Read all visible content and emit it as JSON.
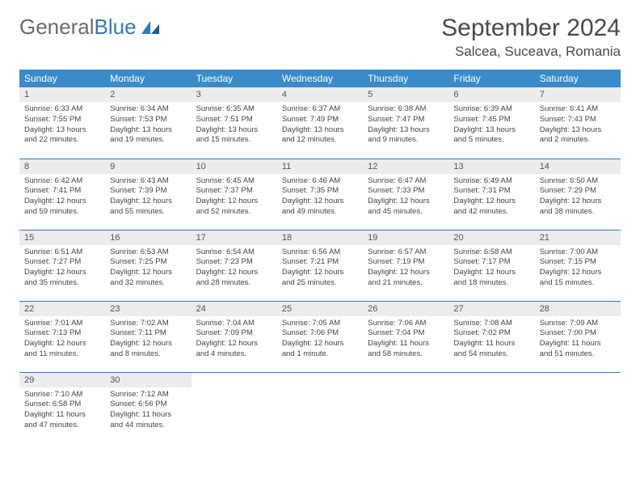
{
  "logo": {
    "text1": "General",
    "text2": "Blue"
  },
  "title": "September 2024",
  "location": "Salcea, Suceava, Romania",
  "colors": {
    "header_bg": "#3a8bc9",
    "header_text": "#ffffff",
    "daynum_bg": "#ececec",
    "border": "#2f7bbf",
    "logo_gray": "#6b6b6b",
    "logo_blue": "#2f7bbf"
  },
  "weekdays": [
    "Sunday",
    "Monday",
    "Tuesday",
    "Wednesday",
    "Thursday",
    "Friday",
    "Saturday"
  ],
  "days": [
    {
      "n": 1,
      "sunrise": "6:33 AM",
      "sunset": "7:55 PM",
      "daylight": "13 hours and 22 minutes."
    },
    {
      "n": 2,
      "sunrise": "6:34 AM",
      "sunset": "7:53 PM",
      "daylight": "13 hours and 19 minutes."
    },
    {
      "n": 3,
      "sunrise": "6:35 AM",
      "sunset": "7:51 PM",
      "daylight": "13 hours and 15 minutes."
    },
    {
      "n": 4,
      "sunrise": "6:37 AM",
      "sunset": "7:49 PM",
      "daylight": "13 hours and 12 minutes."
    },
    {
      "n": 5,
      "sunrise": "6:38 AM",
      "sunset": "7:47 PM",
      "daylight": "13 hours and 9 minutes."
    },
    {
      "n": 6,
      "sunrise": "6:39 AM",
      "sunset": "7:45 PM",
      "daylight": "13 hours and 5 minutes."
    },
    {
      "n": 7,
      "sunrise": "6:41 AM",
      "sunset": "7:43 PM",
      "daylight": "13 hours and 2 minutes."
    },
    {
      "n": 8,
      "sunrise": "6:42 AM",
      "sunset": "7:41 PM",
      "daylight": "12 hours and 59 minutes."
    },
    {
      "n": 9,
      "sunrise": "6:43 AM",
      "sunset": "7:39 PM",
      "daylight": "12 hours and 55 minutes."
    },
    {
      "n": 10,
      "sunrise": "6:45 AM",
      "sunset": "7:37 PM",
      "daylight": "12 hours and 52 minutes."
    },
    {
      "n": 11,
      "sunrise": "6:46 AM",
      "sunset": "7:35 PM",
      "daylight": "12 hours and 49 minutes."
    },
    {
      "n": 12,
      "sunrise": "6:47 AM",
      "sunset": "7:33 PM",
      "daylight": "12 hours and 45 minutes."
    },
    {
      "n": 13,
      "sunrise": "6:49 AM",
      "sunset": "7:31 PM",
      "daylight": "12 hours and 42 minutes."
    },
    {
      "n": 14,
      "sunrise": "6:50 AM",
      "sunset": "7:29 PM",
      "daylight": "12 hours and 38 minutes."
    },
    {
      "n": 15,
      "sunrise": "6:51 AM",
      "sunset": "7:27 PM",
      "daylight": "12 hours and 35 minutes."
    },
    {
      "n": 16,
      "sunrise": "6:53 AM",
      "sunset": "7:25 PM",
      "daylight": "12 hours and 32 minutes."
    },
    {
      "n": 17,
      "sunrise": "6:54 AM",
      "sunset": "7:23 PM",
      "daylight": "12 hours and 28 minutes."
    },
    {
      "n": 18,
      "sunrise": "6:56 AM",
      "sunset": "7:21 PM",
      "daylight": "12 hours and 25 minutes."
    },
    {
      "n": 19,
      "sunrise": "6:57 AM",
      "sunset": "7:19 PM",
      "daylight": "12 hours and 21 minutes."
    },
    {
      "n": 20,
      "sunrise": "6:58 AM",
      "sunset": "7:17 PM",
      "daylight": "12 hours and 18 minutes."
    },
    {
      "n": 21,
      "sunrise": "7:00 AM",
      "sunset": "7:15 PM",
      "daylight": "12 hours and 15 minutes."
    },
    {
      "n": 22,
      "sunrise": "7:01 AM",
      "sunset": "7:13 PM",
      "daylight": "12 hours and 11 minutes."
    },
    {
      "n": 23,
      "sunrise": "7:02 AM",
      "sunset": "7:11 PM",
      "daylight": "12 hours and 8 minutes."
    },
    {
      "n": 24,
      "sunrise": "7:04 AM",
      "sunset": "7:09 PM",
      "daylight": "12 hours and 4 minutes."
    },
    {
      "n": 25,
      "sunrise": "7:05 AM",
      "sunset": "7:06 PM",
      "daylight": "12 hours and 1 minute."
    },
    {
      "n": 26,
      "sunrise": "7:06 AM",
      "sunset": "7:04 PM",
      "daylight": "11 hours and 58 minutes."
    },
    {
      "n": 27,
      "sunrise": "7:08 AM",
      "sunset": "7:02 PM",
      "daylight": "11 hours and 54 minutes."
    },
    {
      "n": 28,
      "sunrise": "7:09 AM",
      "sunset": "7:00 PM",
      "daylight": "11 hours and 51 minutes."
    },
    {
      "n": 29,
      "sunrise": "7:10 AM",
      "sunset": "6:58 PM",
      "daylight": "11 hours and 47 minutes."
    },
    {
      "n": 30,
      "sunrise": "7:12 AM",
      "sunset": "6:56 PM",
      "daylight": "11 hours and 44 minutes."
    }
  ],
  "labels": {
    "sunrise": "Sunrise:",
    "sunset": "Sunset:",
    "daylight": "Daylight:"
  }
}
